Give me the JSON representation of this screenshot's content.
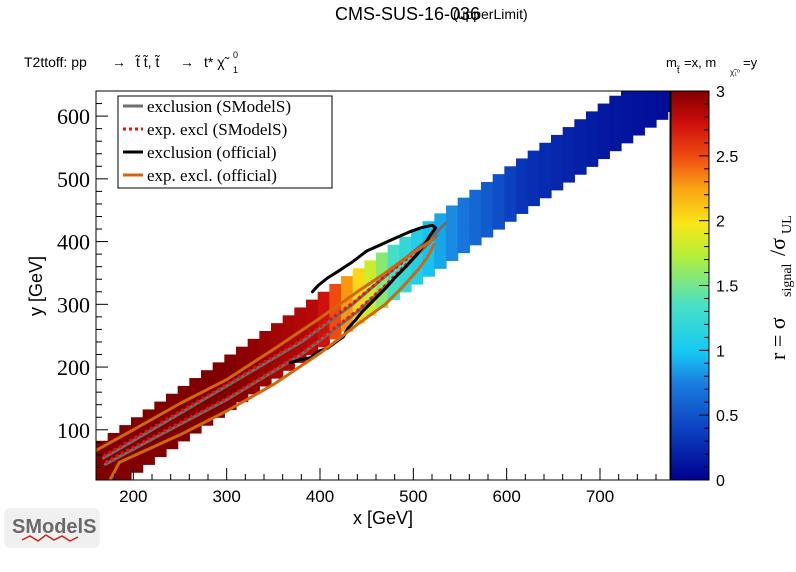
{
  "header": {
    "title": "CMS-SUS-16-036",
    "subtitle": "(upperLimit)",
    "process_prefix": "T2ttoff: pp",
    "process_production": "t̃ t̃, t̃",
    "process_decay": "t* χ̃",
    "process_decay_sup": "0",
    "process_decay_sub": "1",
    "mass_label": "m",
    "mass_label_sub": "t̃",
    "mass_label_mid": "=x, m",
    "mass_label_sub2": "χ̃₁⁰",
    "mass_label_end": "=y"
  },
  "logo": {
    "text": "SModelS"
  },
  "colors": {
    "sms_exclusion": "#6e6e6e",
    "sms_expected": "#e8120a",
    "official_exclusion": "#000000",
    "official_expected": "#d0670d"
  },
  "chart_data": {
    "type": "heatmap",
    "title": "CMS-SUS-16-036",
    "xlabel": "x [GeV]",
    "ylabel": "y [GeV]",
    "zlabel_main": "r = σ",
    "zlabel_sub1": "signal",
    "zlabel_sep": "/σ",
    "zlabel_sub2": "UL",
    "xlim": [
      160,
      775
    ],
    "ylim": [
      20,
      640
    ],
    "zlim": [
      0,
      3
    ],
    "x_ticks": [
      200,
      300,
      400,
      500,
      600,
      700
    ],
    "y_ticks": [
      100,
      200,
      300,
      400,
      500,
      600
    ],
    "z_ticks": [
      0,
      0.5,
      1,
      1.5,
      2,
      2.5,
      3
    ],
    "band": {
      "offset_min": 90,
      "offset_max": 170,
      "cell_size": 12.5,
      "sample_r": [
        {
          "x": 200,
          "r": 3.0
        },
        {
          "x": 300,
          "r": 3.0
        },
        {
          "x": 400,
          "r": 2.8
        },
        {
          "x": 450,
          "r": 1.9
        },
        {
          "x": 480,
          "r": 1.3
        },
        {
          "x": 520,
          "r": 0.95
        },
        {
          "x": 560,
          "r": 0.65
        },
        {
          "x": 620,
          "r": 0.3
        },
        {
          "x": 700,
          "r": 0.15
        },
        {
          "x": 770,
          "r": 0.08
        }
      ]
    },
    "legend": [
      {
        "label": "exclusion (SModelS)",
        "style": "solid",
        "color_key": "sms_exclusion"
      },
      {
        "label": "exp. excl (SModelS)",
        "style": "dotted",
        "color_key": "sms_expected"
      },
      {
        "label": "exclusion (official)",
        "style": "solid",
        "color_key": "official_exclusion"
      },
      {
        "label": "exp. excl. (official)",
        "style": "solid",
        "color_key": "official_expected"
      }
    ],
    "series": [
      {
        "name": "exclusion (SModelS) lower",
        "color_key": "sms_exclusion",
        "style": "solid",
        "points": [
          [
            170,
            45
          ],
          [
            220,
            85
          ],
          [
            300,
            148
          ],
          [
            380,
            220
          ],
          [
            440,
            288
          ],
          [
            475,
            335
          ],
          [
            498,
            370
          ],
          [
            515,
            395
          ],
          [
            525,
            410
          ]
        ]
      },
      {
        "name": "exclusion (SModelS) upper",
        "color_key": "sms_exclusion",
        "style": "solid",
        "points": [
          [
            168,
            55
          ],
          [
            220,
            100
          ],
          [
            300,
            170
          ],
          [
            380,
            240
          ],
          [
            435,
            300
          ],
          [
            470,
            345
          ],
          [
            495,
            378
          ],
          [
            515,
            402
          ],
          [
            525,
            415
          ],
          [
            535,
            430
          ]
        ]
      },
      {
        "name": "exp. excl (SModelS) lower",
        "color_key": "sms_expected",
        "style": "dotted",
        "points": [
          [
            170,
            48
          ],
          [
            220,
            88
          ],
          [
            300,
            150
          ],
          [
            380,
            222
          ],
          [
            440,
            290
          ],
          [
            470,
            330
          ],
          [
            490,
            360
          ],
          [
            505,
            380
          ]
        ]
      },
      {
        "name": "exp. excl (SModelS) upper",
        "color_key": "sms_expected",
        "style": "dotted",
        "points": [
          [
            168,
            58
          ],
          [
            220,
            103
          ],
          [
            300,
            172
          ],
          [
            380,
            243
          ],
          [
            435,
            302
          ],
          [
            470,
            345
          ],
          [
            495,
            375
          ],
          [
            505,
            385
          ]
        ]
      },
      {
        "name": "exclusion (official)",
        "color_key": "official_exclusion",
        "style": "solid",
        "points": [
          [
            368,
            207
          ],
          [
            380,
            212
          ],
          [
            390,
            215
          ],
          [
            398,
            225
          ],
          [
            408,
            230
          ],
          [
            417,
            240
          ],
          [
            425,
            248
          ],
          [
            430,
            262
          ],
          [
            438,
            275
          ],
          [
            445,
            288
          ],
          [
            452,
            298
          ],
          [
            460,
            310
          ],
          [
            470,
            325
          ],
          [
            480,
            342
          ],
          [
            492,
            360
          ],
          [
            503,
            378
          ],
          [
            512,
            395
          ],
          [
            518,
            410
          ],
          [
            524,
            422
          ],
          [
            520,
            426
          ],
          [
            508,
            422
          ],
          [
            495,
            415
          ],
          [
            480,
            405
          ],
          [
            465,
            395
          ],
          [
            450,
            385
          ],
          [
            435,
            368
          ],
          [
            422,
            355
          ],
          [
            408,
            342
          ],
          [
            398,
            330
          ],
          [
            392,
            320
          ]
        ]
      },
      {
        "name": "exp. excl. (official) upper",
        "color_key": "official_expected",
        "style": "solid",
        "points": [
          [
            160,
            67
          ],
          [
            200,
            100
          ],
          [
            250,
            142
          ],
          [
            300,
            180
          ],
          [
            350,
            228
          ],
          [
            400,
            278
          ],
          [
            440,
            320
          ],
          [
            470,
            350
          ],
          [
            490,
            372
          ],
          [
            510,
            392
          ],
          [
            522,
            405
          ]
        ]
      },
      {
        "name": "exp. excl. (official) lower",
        "color_key": "official_expected",
        "style": "solid",
        "points": [
          [
            175,
            20
          ],
          [
            185,
            48
          ],
          [
            210,
            65
          ],
          [
            250,
            92
          ],
          [
            300,
            130
          ],
          [
            350,
            172
          ],
          [
            400,
            222
          ],
          [
            440,
            268
          ],
          [
            470,
            300
          ],
          [
            490,
            330
          ],
          [
            505,
            355
          ],
          [
            515,
            375
          ],
          [
            522,
            395
          ]
        ]
      }
    ]
  }
}
